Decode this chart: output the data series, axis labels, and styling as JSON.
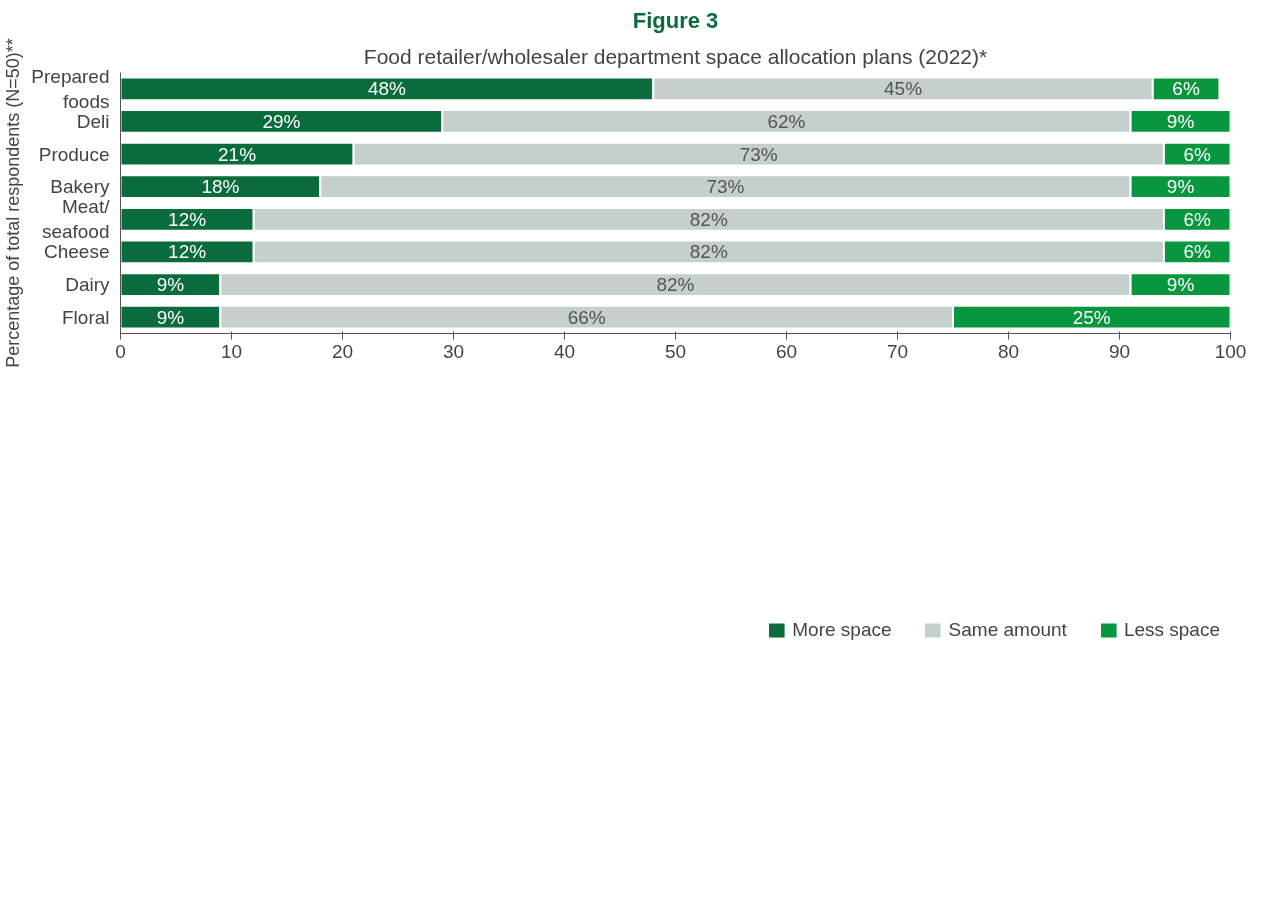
{
  "chart_data": {
    "type": "bar",
    "orientation": "horizontal",
    "stacked": true,
    "title": "Figure 3",
    "subtitle": "Food retailer/wholesaler department space allocation plans (2022)*",
    "ylabel": "Percentage of total respondents (N=50)**",
    "categories": [
      "Prepared foods",
      "Deli",
      "Produce",
      "Bakery",
      "Meat/seafood",
      "Cheese",
      "Dairy",
      "Floral"
    ],
    "series": [
      {
        "name": "More space",
        "color": "#0a6b3c",
        "values": [
          48,
          29,
          21,
          18,
          12,
          12,
          9,
          9
        ],
        "value_labels": [
          "48%",
          "29%",
          "21%",
          "18%",
          "12%",
          "12%",
          "9%",
          "9%"
        ]
      },
      {
        "name": "Same amount",
        "color": "#c5cfcc",
        "values": [
          45,
          62,
          73,
          73,
          82,
          82,
          82,
          66
        ],
        "value_labels": [
          "45%",
          "62%",
          "73%",
          "73%",
          "82%",
          "82%",
          "82%",
          "66%"
        ]
      },
      {
        "name": "Less space",
        "color": "#08963f",
        "values": [
          6,
          9,
          6,
          9,
          6,
          6,
          9,
          25
        ],
        "value_labels": [
          "6%",
          "9%",
          "6%",
          "9%",
          "6%",
          "6%",
          "9%",
          "25%"
        ]
      }
    ],
    "xlim": [
      0,
      100
    ],
    "xticks": [
      0,
      10,
      20,
      30,
      40,
      50,
      60,
      70,
      80,
      90,
      100
    ],
    "grid": false,
    "legend": "bottom"
  }
}
